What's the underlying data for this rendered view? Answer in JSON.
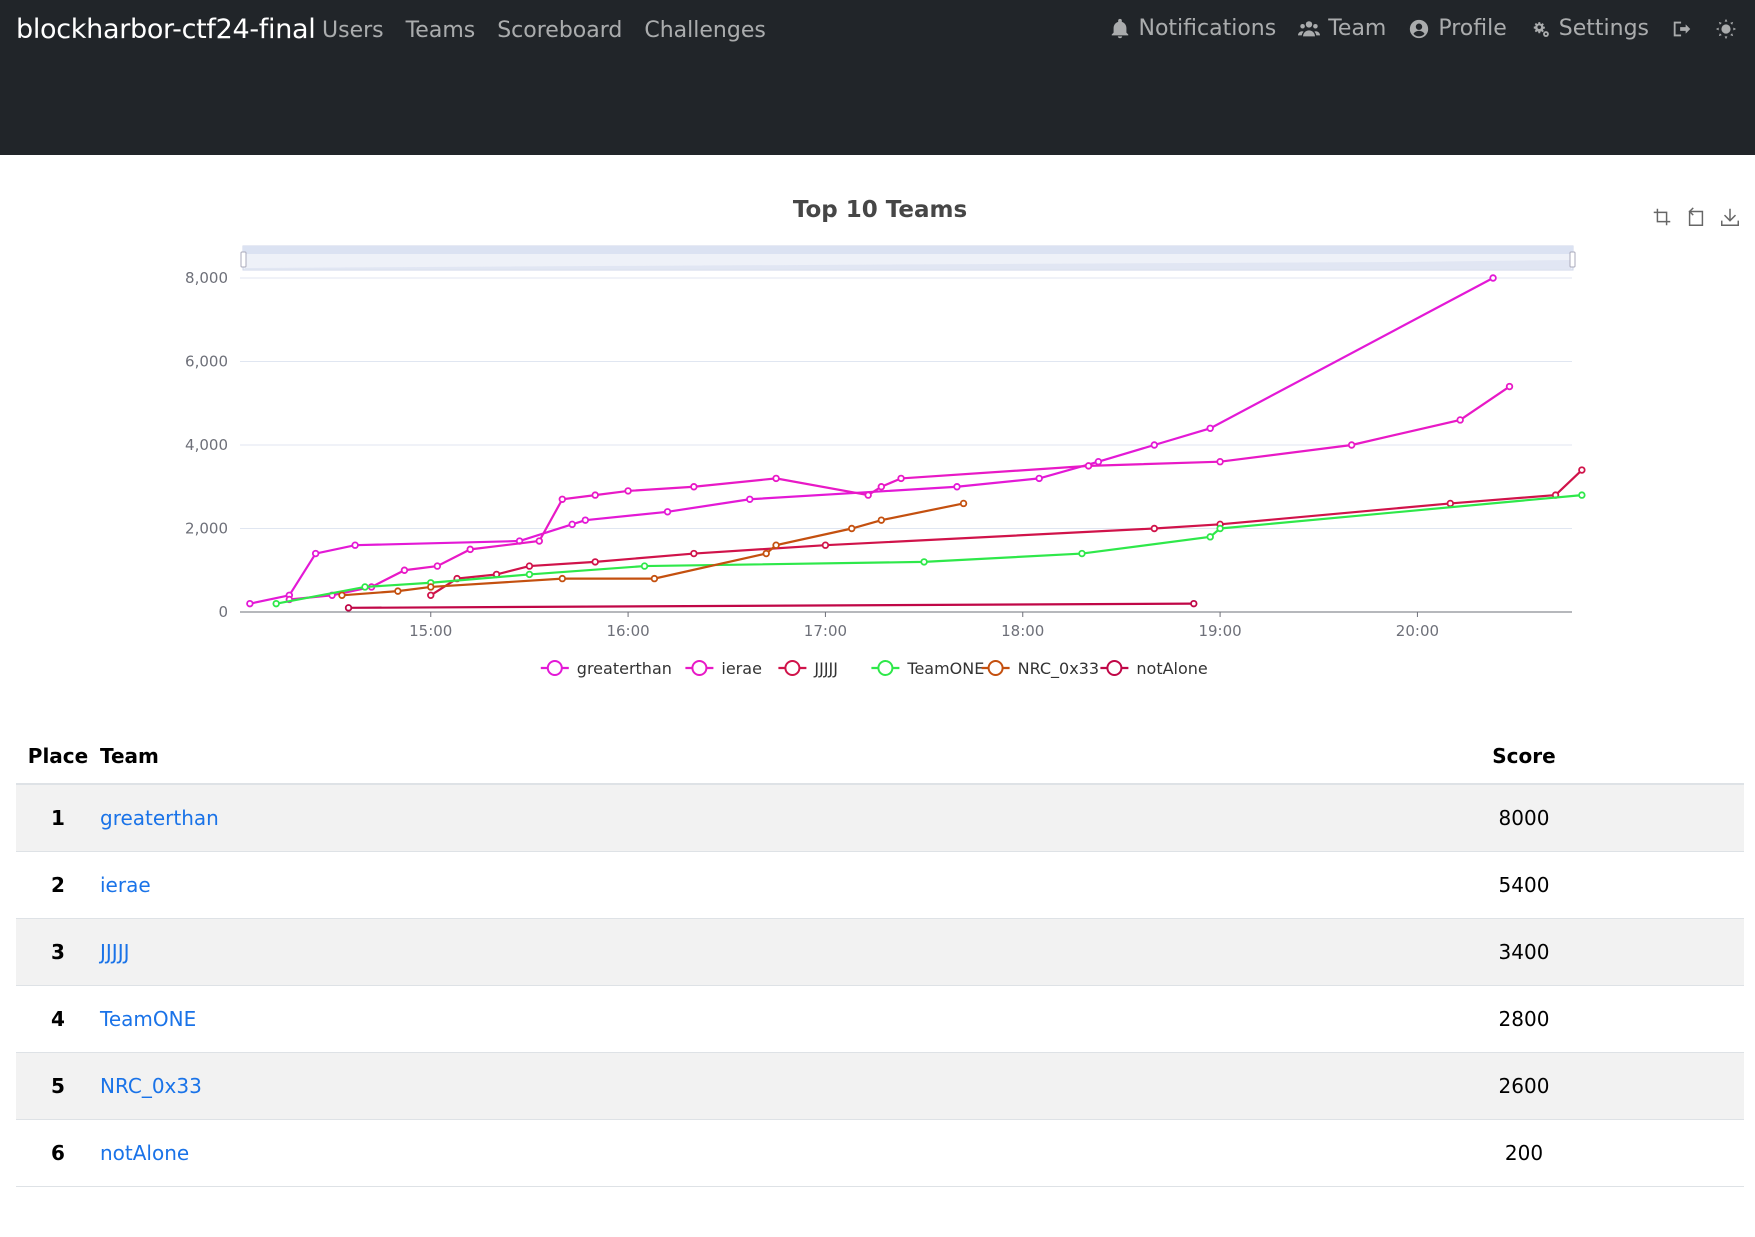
{
  "navbar": {
    "brand": "blockharbor-ctf24-final",
    "left_links": [
      "Users",
      "Teams",
      "Scoreboard",
      "Challenges"
    ],
    "right_links": [
      {
        "label": "Notifications",
        "icon": "bell-icon"
      },
      {
        "label": "Team",
        "icon": "users-icon"
      },
      {
        "label": "Profile",
        "icon": "user-circle-icon"
      },
      {
        "label": "Settings",
        "icon": "cogs-icon"
      }
    ],
    "logout_icon": "sign-out-icon",
    "theme_icon": "sun-icon"
  },
  "chart_data": {
    "type": "line",
    "title": "Top 10 Teams",
    "xlabel": "",
    "ylabel": "",
    "x_ticks": [
      "15:00",
      "16:00",
      "17:00",
      "18:00",
      "19:00",
      "20:00"
    ],
    "y_ticks": [
      "0",
      "2,000",
      "4,000",
      "6,000",
      "8,000"
    ],
    "ylim": [
      0,
      8000
    ],
    "x_unit": "hours",
    "grid": "horizontal",
    "legend_position": "bottom",
    "series": [
      {
        "name": "greaterthan",
        "color": "#e319d6",
        "x": [
          "14:05",
          "14:17",
          "14:25",
          "14:37",
          "15:27",
          "15:43",
          "15:47",
          "16:12",
          "16:37",
          "17:40",
          "18:05",
          "18:23",
          "18:40",
          "18:57",
          "20:23"
        ],
        "y": [
          200,
          400,
          1400,
          1600,
          1700,
          2100,
          2200,
          2400,
          2700,
          3000,
          3200,
          3600,
          4000,
          4400,
          8000
        ]
      },
      {
        "name": "ierae",
        "color": "#e819c6",
        "x": [
          "14:17",
          "14:30",
          "14:42",
          "14:52",
          "15:02",
          "15:12",
          "15:33",
          "15:40",
          "15:50",
          "16:00",
          "16:20",
          "16:45",
          "17:13",
          "17:17",
          "17:23",
          "18:20",
          "19:00",
          "19:40",
          "20:13",
          "20:28"
        ],
        "y": [
          300,
          400,
          600,
          1000,
          1100,
          1500,
          1700,
          2700,
          2800,
          2900,
          3000,
          3200,
          2800,
          3000,
          3200,
          3500,
          3600,
          4000,
          4600,
          5400
        ]
      },
      {
        "name": "JJJJJ",
        "color": "#d0134a",
        "x": [
          "15:00",
          "15:08",
          "15:20",
          "15:30",
          "15:50",
          "16:20",
          "17:00",
          "18:40",
          "19:00",
          "20:10",
          "20:42",
          "20:50"
        ],
        "y": [
          400,
          800,
          900,
          1100,
          1200,
          1400,
          1600,
          2000,
          2100,
          2600,
          2800,
          3400
        ]
      },
      {
        "name": "TeamONE",
        "color": "#2ee84a",
        "x": [
          "14:13",
          "14:40",
          "15:00",
          "15:30",
          "16:05",
          "17:30",
          "18:18",
          "18:57",
          "19:00",
          "20:50"
        ],
        "y": [
          200,
          600,
          700,
          900,
          1100,
          1200,
          1400,
          1800,
          2000,
          2800
        ]
      },
      {
        "name": "NRC_0x33",
        "color": "#c4500f",
        "x": [
          "14:33",
          "14:50",
          "15:00",
          "15:40",
          "16:08",
          "16:42",
          "16:45",
          "17:08",
          "17:17",
          "17:42"
        ],
        "y": [
          400,
          500,
          600,
          800,
          800,
          1400,
          1600,
          2000,
          2200,
          2600
        ]
      },
      {
        "name": "notAlone",
        "color": "#c00747",
        "x": [
          "14:35",
          "18:52"
        ],
        "y": [
          100,
          200
        ]
      }
    ]
  },
  "table": {
    "headers": {
      "place": "Place",
      "team": "Team",
      "score": "Score"
    },
    "rows": [
      {
        "place": "1",
        "team": "greaterthan",
        "score": "8000"
      },
      {
        "place": "2",
        "team": "ierae",
        "score": "5400"
      },
      {
        "place": "3",
        "team": "JJJJJ",
        "score": "3400"
      },
      {
        "place": "4",
        "team": "TeamONE",
        "score": "2800"
      },
      {
        "place": "5",
        "team": "NRC_0x33",
        "score": "2600"
      },
      {
        "place": "6",
        "team": "notAlone",
        "score": "200"
      }
    ]
  }
}
